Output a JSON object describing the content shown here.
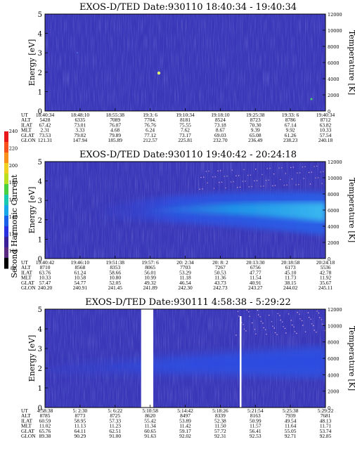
{
  "figure": {
    "ylabel_energy": "Energy [eV]",
    "ylabel_temperature": "Temperature [K]",
    "colorbar": {
      "label": "Second Harmonic Current",
      "ticks": [
        "240",
        "220",
        "200",
        "180",
        "160",
        "140",
        "120",
        "100",
        "80"
      ],
      "colors": [
        "#e8171a",
        "#f8501a",
        "#f8901a",
        "#f0d020",
        "#b8e020",
        "#48d040",
        "#18c8b0",
        "#18a8e8",
        "#1a60e8",
        "#2830e0",
        "#3a2098",
        "#5a2a80",
        "#000000"
      ]
    },
    "param_names": [
      "UT",
      "ALT",
      "ILAT",
      "MLT",
      "GLAT",
      "GLON"
    ]
  },
  "chart_data": [
    {
      "type": "heatmap",
      "title": "EXOS-D/TED   Date:930110   18:40:34 - 19:40:34",
      "ylim_energy": [
        0,
        5
      ],
      "yticks_energy": [
        "0",
        "1",
        "2",
        "3",
        "4",
        "5"
      ],
      "ylim_temperature": [
        0,
        12000
      ],
      "yticks_temperature": [
        "0",
        "2000",
        "4000",
        "6000",
        "8000",
        "10000",
        "12000"
      ],
      "background_color": "#3a38b8",
      "gap_ut": [],
      "columns": [
        [
          "18:40:34",
          "5428",
          "67.42",
          "2.31",
          "73.53",
          "121.31"
        ],
        [
          "18:48:10",
          "6335",
          "73.01",
          "3.33",
          "79.02",
          "147.94"
        ],
        [
          "18:55:38",
          "7089",
          "76.07",
          "4.68",
          "79.89",
          "185.89"
        ],
        [
          "19:3: 6",
          "7704.",
          "76.76",
          "6.24",
          "77.12",
          "212.57"
        ],
        [
          "19:10:34",
          "8181",
          "75.55",
          "7.62",
          "73.17",
          "225.81"
        ],
        [
          "19:18:10",
          "8524",
          "73.18",
          "8.67",
          "69.03",
          "232.70"
        ],
        [
          "19:25:38",
          "8723",
          "70.30",
          "9.39",
          "65.08",
          "236.49"
        ],
        [
          "19:33: 6",
          "8786",
          "67.14",
          "9.92",
          "61.26",
          "238.23"
        ],
        [
          "19:40:34",
          "8712",
          "63.82",
          "10.33",
          "57.54",
          "240.18"
        ]
      ]
    },
    {
      "type": "heatmap",
      "title": "EXOS-D/TED   Date:930110   19:40:42 - 20:24:18",
      "ylim_energy": [
        0,
        5
      ],
      "yticks_energy": [
        "0",
        "1",
        "2",
        "3",
        "4",
        "5"
      ],
      "ylim_temperature": [
        0,
        12000
      ],
      "yticks_temperature": [
        "0",
        "2000",
        "4000",
        "6000",
        "8000",
        "10000",
        "12000"
      ],
      "background_color": "#3a38b8",
      "gap_ut": [],
      "columns": [
        [
          "19:40:42",
          "8710",
          "63.76",
          "10.33",
          "57.47",
          "240.20"
        ],
        [
          "19:46:10",
          "8568",
          "61.24",
          "10.58",
          "54.77",
          "240.91"
        ],
        [
          "19:51:38",
          "8353",
          "58.66",
          "10.80",
          "52.05",
          "241.45"
        ],
        [
          "19:57: 6",
          "8065",
          "56.01",
          "10.99",
          "49.32",
          "241.89"
        ],
        [
          "20: 2:34",
          "7703",
          "53.29",
          "11.18",
          "46.54",
          "242.30"
        ],
        [
          "20: 8: 2",
          "7267",
          "50.53",
          "11.36",
          "43.73",
          "242.73"
        ],
        [
          "20:13:30",
          "6756",
          "47.77",
          "11.54",
          "40.91",
          "243.27"
        ],
        [
          "20:18:58",
          "6173",
          "45.10",
          "11.73",
          "38.15",
          "244.02"
        ],
        [
          "20:24:18",
          "5536",
          "42.78",
          "11.92",
          "35.67",
          "245.11"
        ]
      ]
    },
    {
      "type": "heatmap",
      "title": "EXOS-D/TED   Date:930111   4:58:38 - 5:29:22",
      "ylim_energy": [
        0,
        5
      ],
      "yticks_energy": [
        "0",
        "1",
        "2",
        "3",
        "4",
        "5"
      ],
      "ylim_temperature": [
        0,
        12000
      ],
      "yticks_temperature": [
        "0",
        "2000",
        "4000",
        "6000",
        "8000",
        "10000",
        "12000"
      ],
      "background_color": "#3a38b8",
      "gap_ut": [
        "5:09:10",
        "5:10:30"
      ],
      "columns": [
        [
          "4:58:38",
          "8785",
          "60.59",
          "11.02",
          "65.76",
          "89.38"
        ],
        [
          "5: 2:30",
          "8773",
          "58.95",
          "11.13",
          "64.11",
          "90.29"
        ],
        [
          "5: 6:22",
          "8725",
          "57.33",
          "11.23",
          "62.51",
          "91.00"
        ],
        [
          "5:10:58",
          "8620",
          "55.42",
          "11.34",
          "60.65",
          "91.63"
        ],
        [
          "5:14:42",
          "8497",
          "53.89",
          "11.42",
          "59.17",
          "92.02"
        ],
        [
          "5:18:26",
          "8339",
          "52.38",
          "11.50",
          "57.72",
          "92.31"
        ],
        [
          "5:21:54",
          "8163",
          "50.99",
          "11.57",
          "56.41",
          "92.53"
        ],
        [
          "5:25:38",
          "7939",
          "49.54",
          "11.64",
          "55.05",
          "92.71"
        ],
        [
          "5:29:22",
          "7681",
          "48.13",
          "11.71",
          "53.74",
          "92.85"
        ]
      ]
    }
  ]
}
